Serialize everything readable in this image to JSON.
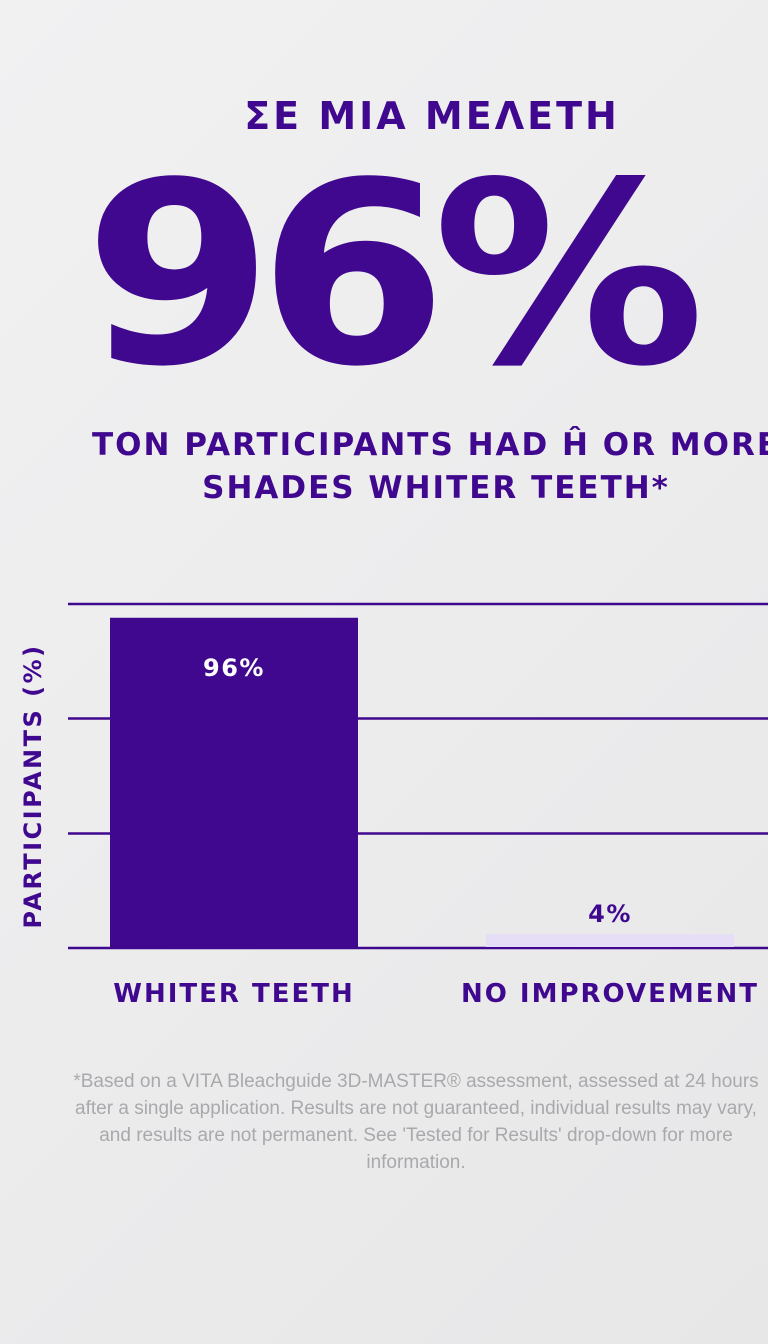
{
  "theme": {
    "accent": "#40088f",
    "light_bar": "#e6ddf7",
    "bar_label_light": "#ffffff",
    "footnote_color": "#a9a9ad"
  },
  "eyebrow": "ΣΕ ΜΙΑ ΜΕΛΕΤΗ",
  "headline_stat": "96%",
  "subtitle_lines": [
    "TON PARTICIPANTS HAD Ĥ OR MORE",
    "SHADES WHITER TEETH*"
  ],
  "chart_data": {
    "type": "bar",
    "categories": [
      "WHITER TEETH",
      "NO IMPROVEMENT"
    ],
    "values": [
      96,
      4
    ],
    "data_labels": [
      "96%",
      "4%"
    ],
    "ylabel": "PARTICIPANTS (%)",
    "ylim": [
      0,
      100
    ],
    "gridlines": [
      0,
      33.3,
      66.7,
      100
    ],
    "grid": true,
    "y_tick_labels": false,
    "bar_colors": [
      "#40088f",
      "#e6ddf7"
    ]
  },
  "footnote": "*Based on a VITA Bleachguide 3D-MASTER® assessment, assessed at 24 hours after a single application. Results are not guaranteed, individual results may vary, and results are not permanent. See 'Tested for Results' drop-down for more information."
}
